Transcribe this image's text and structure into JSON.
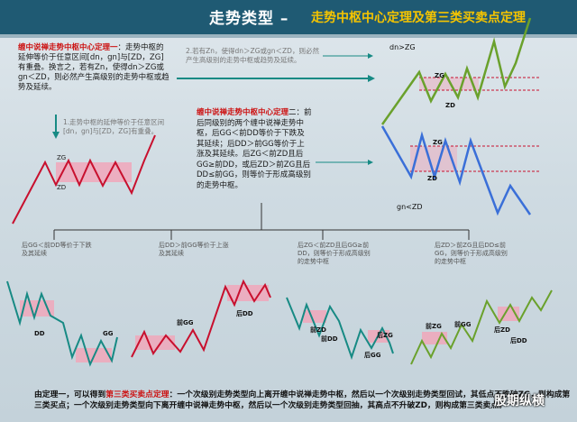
{
  "header": {
    "title_left": "走势类型 –",
    "title_right": "走势中枢中心定理及第三类买卖点定理"
  },
  "theorem1": {
    "title": "缠中说禅走势中枢中心定理一",
    "body": "：走势中枢的延伸等价于任意区间[dn，gn]与[ZD，ZG]有重叠。换言之，若有Zn，使得dn＞ZG或gn＜ZD，则必然产生高级别的走势中枢或趋势及延续。"
  },
  "note1": "1.走势中枢的延伸等价于任意区间[dn，gn]与[ZD，ZG]有重叠。",
  "note2": "2.若有Zn，使得dn＞ZG或gn＜ZD，则必然产生高级别的走势中枢或趋势及延续。",
  "theorem2": {
    "title": "缠中说禅走势中枢中心定理",
    "body": "二：前后同级别的两个缠中说禅走势中枢，后GG＜前DD等价于下跌及其延续；后DD＞前GG等价于上涨及其延续。后ZG＜前ZD且后GG≥前DD，或后ZD＞前ZG且后DD≤前GG，则等价于形成高级别的走势中枢。"
  },
  "branches": {
    "b1": "后GG＜前DD等价于下跌及其延续",
    "b2": "后DD＞前GG等价于上涨及其延续",
    "b3": "后ZG＜前ZD且后GG≥前DD，则等价于形成高级别的走势中枢",
    "b4": "后ZD＞前ZG且后DD≤前GG，则等价于形成高级别的走势中枢"
  },
  "chart_labels": {
    "dn_zg": "dn>ZG",
    "gn_zd": "gn<ZD",
    "zg": "ZG",
    "zd": "ZD",
    "gg": "GG",
    "dd": "DD",
    "zg_front": "前ZG",
    "zd_front": "前ZD",
    "gg_front": "前GG",
    "dd_front": "前DD",
    "gg_back": "后GG",
    "dd_back": "后DD",
    "zg_back": "后ZG",
    "zd_back": "后ZD"
  },
  "footer": {
    "prefix": "由定理一，可以得到",
    "highlight": "第三类买卖点定理",
    "text": "：一个次级别走势类型向上离开缠中说禅走势中枢，然后以一个次级别走势类型回试，其低点不跌破ZG，则构成第三类买点；一个次级别走势类型向下离开缠中说禅走势中枢，然后以一个次级别走势类型回抽，其高点不升破ZD，则构成第三类卖点。"
  },
  "watermark": "股期纵横",
  "colors": {
    "header": "#1f5a73",
    "title_accent": "#f5c400",
    "up_line": "#6aa12c",
    "down_line": "#3a6fd8",
    "zone": "#f2a4b8",
    "red_line": "#c8102e",
    "teal_line": "#178a84"
  }
}
